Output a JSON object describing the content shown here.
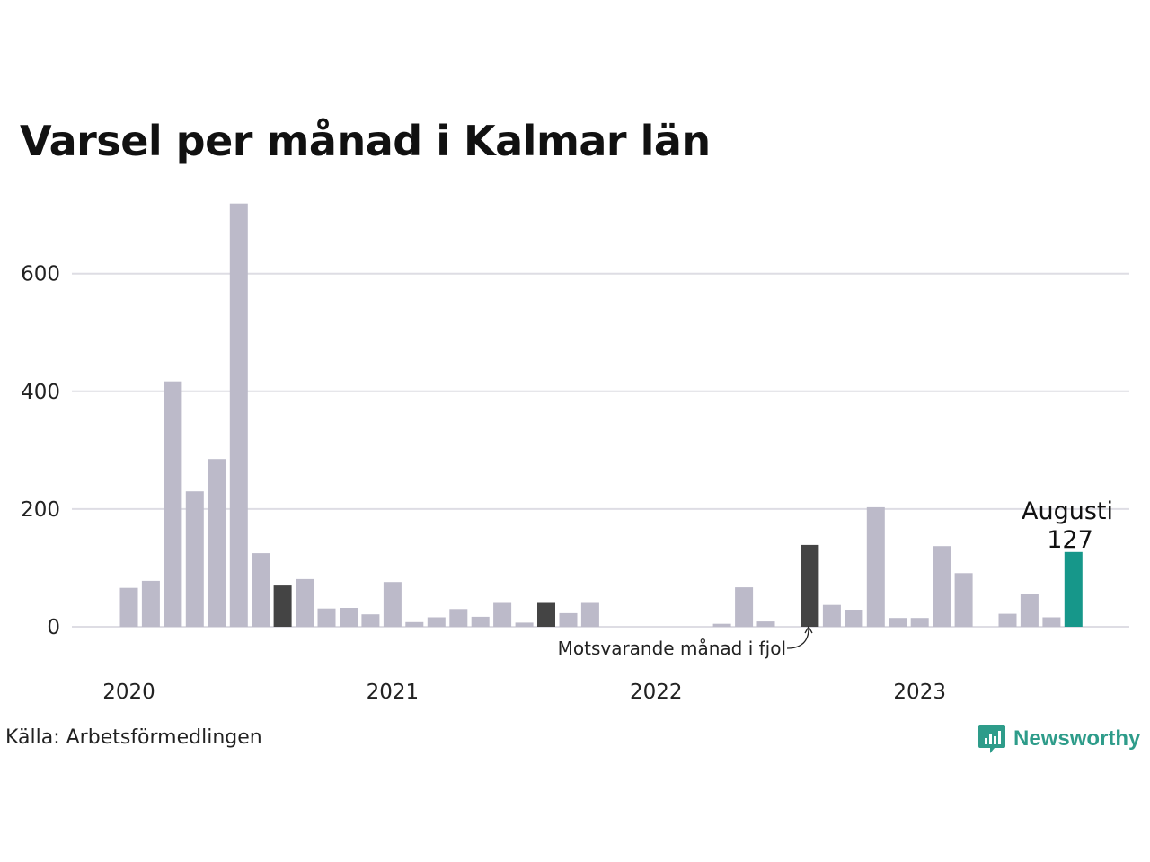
{
  "title": "Varsel per månad i Kalmar län",
  "source": "Källa: Arbetsförmedlingen",
  "logo_text": "Newsworthy",
  "colors": {
    "bar": "#bcbac9",
    "comparison_bar": "#444444",
    "highlight_bar": "#16978a",
    "grid": "#dedde4",
    "logo": "#2e9c8a"
  },
  "highlight": {
    "month": "Augusti",
    "value": "127"
  },
  "annotation": "Motsvarande månad i fjol",
  "chart_data": {
    "type": "bar",
    "title": "Varsel per månad i Kalmar län",
    "xlabel": "",
    "ylabel": "",
    "ylim": [
      0,
      730
    ],
    "yticks": [
      0,
      200,
      400,
      600
    ],
    "grid": true,
    "x_tick_labels": [
      "2020",
      "2021",
      "2022",
      "2023"
    ],
    "categories": [
      "2020-01",
      "2020-02",
      "2020-03",
      "2020-04",
      "2020-05",
      "2020-06",
      "2020-07",
      "2020-08",
      "2020-09",
      "2020-10",
      "2020-11",
      "2020-12",
      "2021-01",
      "2021-02",
      "2021-03",
      "2021-04",
      "2021-05",
      "2021-06",
      "2021-07",
      "2021-08",
      "2021-09",
      "2021-10",
      "2021-11",
      "2021-12",
      "2022-01",
      "2022-02",
      "2022-03",
      "2022-04",
      "2022-05",
      "2022-06",
      "2022-07",
      "2022-08",
      "2022-09",
      "2022-10",
      "2022-11",
      "2022-12",
      "2023-01",
      "2023-02",
      "2023-03",
      "2023-04",
      "2023-05",
      "2023-06",
      "2023-07",
      "2023-08"
    ],
    "values": [
      66,
      78,
      417,
      230,
      285,
      719,
      125,
      70,
      81,
      31,
      32,
      21,
      76,
      8,
      16,
      30,
      17,
      42,
      7,
      42,
      23,
      42,
      0,
      0,
      0,
      0,
      0,
      5,
      67,
      9,
      0,
      139,
      37,
      29,
      203,
      15,
      15,
      137,
      91,
      0,
      22,
      55,
      16,
      127
    ],
    "comparison_months": [
      "2020-08",
      "2021-08",
      "2022-08"
    ],
    "highlight_month": "2023-08"
  }
}
